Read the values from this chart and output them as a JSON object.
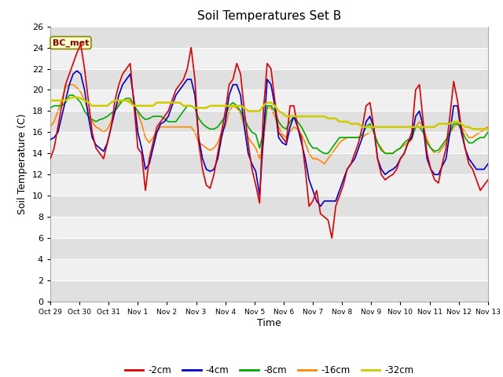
{
  "title": "Soil Temperatures Set B",
  "xlabel": "Time",
  "ylabel": "Soil Temperature (C)",
  "ylim": [
    0,
    26
  ],
  "yticks": [
    0,
    2,
    4,
    6,
    8,
    10,
    12,
    14,
    16,
    18,
    20,
    22,
    24,
    26
  ],
  "x_labels": [
    "Oct 29",
    "Oct 30",
    "Oct 31",
    "Nov 1",
    "Nov 2",
    "Nov 3",
    "Nov 4",
    "Nov 5",
    "Nov 6",
    "Nov 7",
    "Nov 8",
    "Nov 9",
    "Nov 10",
    "Nov 11",
    "Nov 12",
    "Nov 13"
  ],
  "annotation_label": "BC_met",
  "annotation_color": "#8B0000",
  "annotation_bg": "#FFFFCC",
  "fig_bg": "#FFFFFF",
  "plot_bg_light": "#F0F0F0",
  "plot_bg_dark": "#E0E0E0",
  "series": {
    "-2cm": {
      "color": "#DD0000",
      "lw": 1.2
    },
    "-4cm": {
      "color": "#0000CC",
      "lw": 1.2
    },
    "-8cm": {
      "color": "#00AA00",
      "lw": 1.2
    },
    "-16cm": {
      "color": "#FF8800",
      "lw": 1.2
    },
    "-32cm": {
      "color": "#CCCC00",
      "lw": 1.8
    }
  },
  "data_2cm": [
    13.5,
    14.5,
    16.5,
    18.5,
    20.5,
    21.5,
    22.5,
    23.5,
    24.3,
    22.0,
    19.0,
    16.0,
    14.5,
    14.0,
    13.5,
    15.0,
    16.5,
    19.0,
    20.5,
    21.5,
    22.0,
    22.5,
    18.5,
    14.5,
    14.0,
    10.5,
    13.5,
    15.0,
    16.5,
    17.0,
    17.5,
    18.0,
    19.0,
    20.0,
    20.5,
    21.0,
    22.0,
    24.0,
    21.0,
    15.0,
    12.5,
    11.0,
    10.7,
    12.0,
    14.0,
    16.0,
    18.0,
    20.5,
    21.0,
    22.5,
    21.5,
    18.0,
    15.0,
    12.5,
    11.0,
    9.3,
    18.0,
    22.5,
    22.0,
    19.0,
    16.0,
    15.5,
    15.0,
    18.5,
    18.5,
    16.5,
    15.5,
    12.5,
    9.0,
    9.5,
    10.5,
    8.3,
    8.0,
    7.7,
    6.0,
    9.0,
    10.0,
    11.0,
    12.5,
    13.0,
    14.0,
    15.0,
    16.5,
    18.5,
    18.8,
    16.5,
    13.5,
    12.0,
    11.5,
    11.8,
    12.0,
    12.5,
    13.5,
    14.0,
    15.0,
    16.0,
    20.0,
    20.5,
    17.0,
    14.0,
    12.5,
    11.5,
    11.2,
    13.0,
    14.5,
    17.5,
    20.8,
    19.0,
    16.5,
    14.5,
    13.0,
    12.5,
    11.5,
    10.5,
    11.0,
    11.5
  ],
  "data_4cm": [
    15.3,
    15.5,
    16.0,
    17.5,
    19.0,
    20.5,
    21.5,
    21.8,
    21.5,
    20.0,
    17.5,
    15.5,
    14.8,
    14.5,
    14.2,
    15.0,
    16.5,
    18.0,
    19.5,
    20.5,
    21.0,
    21.5,
    19.0,
    16.0,
    14.5,
    12.5,
    13.0,
    14.5,
    16.0,
    16.8,
    17.0,
    17.5,
    18.5,
    19.5,
    20.0,
    20.5,
    21.0,
    21.0,
    19.5,
    15.5,
    13.5,
    12.5,
    12.3,
    12.5,
    13.5,
    15.5,
    17.0,
    19.5,
    20.5,
    20.5,
    19.5,
    16.5,
    14.0,
    13.0,
    12.3,
    10.0,
    15.5,
    21.0,
    20.5,
    18.5,
    15.5,
    15.0,
    14.8,
    16.5,
    17.5,
    16.5,
    15.0,
    13.5,
    11.5,
    10.5,
    9.5,
    9.0,
    9.5,
    9.5,
    9.5,
    9.5,
    10.5,
    11.5,
    12.5,
    13.0,
    13.5,
    14.5,
    15.5,
    17.0,
    17.5,
    16.5,
    13.5,
    12.5,
    12.0,
    12.3,
    12.5,
    12.8,
    13.5,
    14.0,
    15.0,
    15.5,
    17.5,
    18.0,
    16.5,
    13.5,
    12.5,
    12.0,
    12.0,
    12.8,
    13.5,
    16.0,
    18.5,
    18.5,
    16.0,
    14.5,
    13.5,
    13.0,
    12.5,
    12.5,
    12.5,
    13.0
  ],
  "data_8cm": [
    18.3,
    18.5,
    18.5,
    18.5,
    18.8,
    19.5,
    19.5,
    19.2,
    18.8,
    18.0,
    17.5,
    17.2,
    17.0,
    17.2,
    17.3,
    17.5,
    17.8,
    18.0,
    18.5,
    19.0,
    19.2,
    19.2,
    18.5,
    18.0,
    17.5,
    17.2,
    17.3,
    17.5,
    17.5,
    17.5,
    17.3,
    17.0,
    17.0,
    17.0,
    17.5,
    18.0,
    18.5,
    18.5,
    18.3,
    17.3,
    16.8,
    16.5,
    16.3,
    16.3,
    16.5,
    17.0,
    17.5,
    18.5,
    18.8,
    18.5,
    18.0,
    17.3,
    16.5,
    16.0,
    15.8,
    14.5,
    16.0,
    18.5,
    18.5,
    18.0,
    17.0,
    16.5,
    16.3,
    17.0,
    17.5,
    17.0,
    16.5,
    15.8,
    15.0,
    14.5,
    14.5,
    14.2,
    14.0,
    14.0,
    14.5,
    15.0,
    15.5,
    15.5,
    15.5,
    15.5,
    15.5,
    15.5,
    15.8,
    16.5,
    16.8,
    16.0,
    15.0,
    14.3,
    14.0,
    14.0,
    14.0,
    14.3,
    14.5,
    15.0,
    15.3,
    15.5,
    16.5,
    16.5,
    16.0,
    15.0,
    14.5,
    14.2,
    14.3,
    14.8,
    15.3,
    16.0,
    16.8,
    16.8,
    16.3,
    15.5,
    15.0,
    15.0,
    15.3,
    15.5,
    15.5,
    16.0
  ],
  "data_16cm": [
    16.5,
    17.0,
    18.0,
    19.0,
    20.3,
    20.5,
    20.5,
    20.2,
    19.8,
    19.0,
    18.0,
    17.0,
    16.5,
    16.3,
    16.0,
    16.3,
    17.0,
    18.0,
    18.8,
    19.0,
    19.0,
    19.0,
    18.5,
    17.8,
    16.8,
    15.5,
    15.0,
    15.5,
    16.0,
    16.5,
    16.5,
    16.5,
    16.5,
    16.5,
    16.5,
    16.5,
    16.5,
    16.5,
    16.0,
    15.0,
    14.8,
    14.5,
    14.3,
    14.5,
    15.0,
    16.0,
    16.5,
    18.0,
    18.5,
    18.3,
    17.8,
    16.5,
    15.5,
    15.0,
    14.5,
    13.5,
    15.0,
    18.3,
    18.3,
    17.5,
    16.5,
    15.8,
    15.5,
    16.0,
    16.5,
    16.3,
    15.8,
    15.0,
    14.0,
    13.5,
    13.5,
    13.3,
    13.0,
    13.5,
    14.0,
    14.5,
    15.0,
    15.3,
    15.5,
    15.5,
    15.5,
    15.5,
    15.5,
    15.8,
    16.0,
    16.0,
    15.0,
    14.5,
    14.0,
    14.0,
    14.0,
    14.3,
    14.5,
    14.8,
    15.0,
    15.3,
    16.5,
    17.0,
    16.5,
    15.3,
    14.5,
    14.0,
    14.0,
    14.5,
    15.0,
    15.8,
    16.5,
    16.8,
    16.5,
    16.0,
    15.5,
    15.5,
    15.8,
    16.0,
    16.3,
    16.5
  ],
  "data_32cm": [
    19.0,
    19.0,
    19.0,
    19.0,
    19.0,
    19.2,
    19.3,
    19.3,
    19.2,
    19.0,
    18.8,
    18.5,
    18.5,
    18.5,
    18.5,
    18.5,
    18.8,
    19.0,
    19.0,
    19.0,
    19.0,
    18.8,
    18.5,
    18.5,
    18.5,
    18.5,
    18.5,
    18.5,
    18.8,
    18.8,
    18.8,
    18.8,
    18.8,
    18.8,
    18.8,
    18.5,
    18.5,
    18.5,
    18.3,
    18.3,
    18.3,
    18.3,
    18.5,
    18.5,
    18.5,
    18.5,
    18.5,
    18.5,
    18.5,
    18.5,
    18.5,
    18.3,
    18.0,
    18.0,
    18.0,
    18.0,
    18.5,
    18.8,
    18.8,
    18.5,
    18.0,
    17.8,
    17.5,
    17.5,
    17.5,
    17.5,
    17.5,
    17.5,
    17.5,
    17.5,
    17.5,
    17.5,
    17.5,
    17.3,
    17.3,
    17.3,
    17.0,
    17.0,
    17.0,
    16.8,
    16.8,
    16.8,
    16.5,
    16.5,
    16.5,
    16.5,
    16.5,
    16.5,
    16.5,
    16.5,
    16.5,
    16.5,
    16.5,
    16.5,
    16.5,
    16.5,
    16.5,
    16.5,
    16.5,
    16.5,
    16.5,
    16.5,
    16.8,
    16.8,
    16.8,
    16.8,
    17.0,
    17.0,
    16.8,
    16.5,
    16.5,
    16.3,
    16.3,
    16.3,
    16.3,
    16.3
  ]
}
